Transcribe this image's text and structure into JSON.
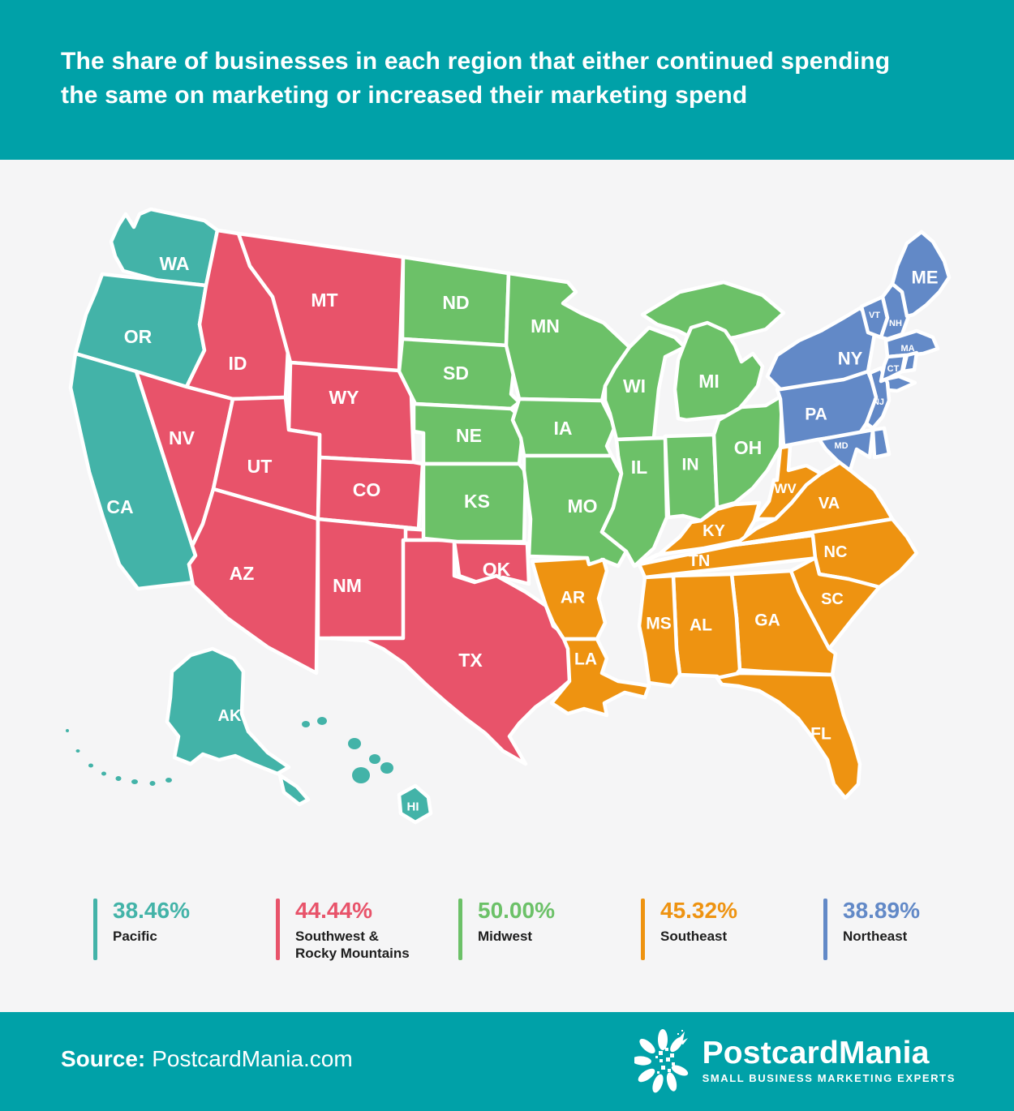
{
  "header": {
    "title": "The share of businesses in each region that either continued spending the same on marketing or increased their marketing spend",
    "title_lines": [
      "The share of businesses in each region that either continued spending",
      "the same on marketing or increased their marketing spend"
    ]
  },
  "regions": [
    {
      "id": "pacific",
      "name": "Pacific",
      "value": "38.46%",
      "color": "#43B3A8"
    },
    {
      "id": "southwest",
      "name": "Southwest & Rocky Mountains",
      "value": "44.44%",
      "color": "#E8536A"
    },
    {
      "id": "midwest",
      "name": "Midwest",
      "value": "50.00%",
      "color": "#6CC168"
    },
    {
      "id": "southeast",
      "name": "Southeast",
      "value": "45.32%",
      "color": "#EE9311"
    },
    {
      "id": "northeast",
      "name": "Northeast",
      "value": "38.89%",
      "color": "#6289C7"
    }
  ],
  "map": {
    "states": [
      {
        "id": "WA",
        "label": "WA",
        "region": "pacific"
      },
      {
        "id": "OR",
        "label": "OR",
        "region": "pacific"
      },
      {
        "id": "CA",
        "label": "CA",
        "region": "pacific"
      },
      {
        "id": "ID",
        "label": "ID",
        "region": "southwest"
      },
      {
        "id": "MT",
        "label": "MT",
        "region": "southwest"
      },
      {
        "id": "WY",
        "label": "WY",
        "region": "southwest"
      },
      {
        "id": "NV",
        "label": "NV",
        "region": "southwest"
      },
      {
        "id": "UT",
        "label": "UT",
        "region": "southwest"
      },
      {
        "id": "CO",
        "label": "CO",
        "region": "southwest"
      },
      {
        "id": "AZ",
        "label": "AZ",
        "region": "southwest"
      },
      {
        "id": "NM",
        "label": "NM",
        "region": "southwest"
      },
      {
        "id": "OK",
        "label": "OK",
        "region": "southwest"
      },
      {
        "id": "TX",
        "label": "TX",
        "region": "southwest"
      },
      {
        "id": "ND",
        "label": "ND",
        "region": "midwest"
      },
      {
        "id": "SD",
        "label": "SD",
        "region": "midwest"
      },
      {
        "id": "NE",
        "label": "NE",
        "region": "midwest"
      },
      {
        "id": "KS",
        "label": "KS",
        "region": "midwest"
      },
      {
        "id": "MN",
        "label": "MN",
        "region": "midwest"
      },
      {
        "id": "IA",
        "label": "IA",
        "region": "midwest"
      },
      {
        "id": "MO",
        "label": "MO",
        "region": "midwest"
      },
      {
        "id": "WI",
        "label": "WI",
        "region": "midwest"
      },
      {
        "id": "MI_UP",
        "label": "",
        "region": "midwest"
      },
      {
        "id": "MI",
        "label": "MI",
        "region": "midwest"
      },
      {
        "id": "IL",
        "label": "IL",
        "region": "midwest"
      },
      {
        "id": "IN",
        "label": "IN",
        "region": "midwest"
      },
      {
        "id": "OH",
        "label": "OH",
        "region": "midwest"
      },
      {
        "id": "KY",
        "label": "KY",
        "region": "southeast"
      },
      {
        "id": "WV",
        "label": "WV",
        "region": "southeast"
      },
      {
        "id": "VA",
        "label": "VA",
        "region": "southeast"
      },
      {
        "id": "TN",
        "label": "TN",
        "region": "southeast"
      },
      {
        "id": "NC",
        "label": "NC",
        "region": "southeast"
      },
      {
        "id": "SC",
        "label": "SC",
        "region": "southeast"
      },
      {
        "id": "GA",
        "label": "GA",
        "region": "southeast"
      },
      {
        "id": "AL",
        "label": "AL",
        "region": "southeast"
      },
      {
        "id": "MS",
        "label": "MS",
        "region": "southeast"
      },
      {
        "id": "AR",
        "label": "AR",
        "region": "southeast"
      },
      {
        "id": "LA",
        "label": "LA",
        "region": "southeast"
      },
      {
        "id": "FL",
        "label": "FL",
        "region": "southeast"
      },
      {
        "id": "PA",
        "label": "PA",
        "region": "northeast"
      },
      {
        "id": "NY",
        "label": "NY",
        "region": "northeast"
      },
      {
        "id": "LI",
        "label": "",
        "region": "northeast"
      },
      {
        "id": "NJ",
        "label": "NJ",
        "region": "northeast"
      },
      {
        "id": "MD",
        "label": "MD",
        "region": "northeast"
      },
      {
        "id": "DE",
        "label": "",
        "region": "northeast"
      },
      {
        "id": "VT",
        "label": "VT",
        "region": "northeast"
      },
      {
        "id": "NH",
        "label": "NH",
        "region": "northeast"
      },
      {
        "id": "ME",
        "label": "ME",
        "region": "northeast"
      },
      {
        "id": "MA",
        "label": "MA",
        "region": "northeast"
      },
      {
        "id": "CT",
        "label": "CT",
        "region": "northeast"
      },
      {
        "id": "RI",
        "label": "",
        "region": "northeast"
      },
      {
        "id": "AK",
        "label": "AK",
        "region": "pacific"
      },
      {
        "id": "AK_TAIL",
        "label": "",
        "region": "pacific"
      },
      {
        "id": "AK_DOTS",
        "label": "",
        "region": "pacific"
      },
      {
        "id": "HI_DOTS",
        "label": "",
        "region": "pacific"
      },
      {
        "id": "HI",
        "label": "HI",
        "region": "pacific"
      }
    ]
  },
  "footer": {
    "source_label": "Source:",
    "source_value": "PostcardMania.com",
    "logo_text": "PostcardMania",
    "logo_tagline": "SMALL BUSINESS MARKETING EXPERTS"
  },
  "chart_data": {
    "type": "choropleth",
    "title": "The share of businesses in each region that either continued spending the same on marketing or increased their marketing spend",
    "unit": "percent",
    "legend_position": "bottom",
    "source": "PostcardMania.com",
    "series": [
      {
        "region": "Pacific",
        "value": 38.46,
        "color": "#43B3A8",
        "states": [
          "WA",
          "OR",
          "CA",
          "AK",
          "HI"
        ]
      },
      {
        "region": "Southwest & Rocky Mountains",
        "value": 44.44,
        "color": "#E8536A",
        "states": [
          "MT",
          "ID",
          "WY",
          "NV",
          "UT",
          "CO",
          "AZ",
          "NM",
          "OK",
          "TX"
        ]
      },
      {
        "region": "Midwest",
        "value": 50.0,
        "color": "#6CC168",
        "states": [
          "ND",
          "SD",
          "NE",
          "KS",
          "MN",
          "IA",
          "MO",
          "WI",
          "MI",
          "IL",
          "IN",
          "OH"
        ]
      },
      {
        "region": "Southeast",
        "value": 45.32,
        "color": "#EE9311",
        "states": [
          "KY",
          "WV",
          "VA",
          "TN",
          "NC",
          "SC",
          "GA",
          "AL",
          "MS",
          "AR",
          "LA",
          "FL"
        ]
      },
      {
        "region": "Northeast",
        "value": 38.89,
        "color": "#6289C7",
        "states": [
          "ME",
          "VT",
          "NH",
          "NY",
          "MA",
          "CT",
          "RI",
          "PA",
          "NJ",
          "DE",
          "MD"
        ]
      }
    ]
  }
}
